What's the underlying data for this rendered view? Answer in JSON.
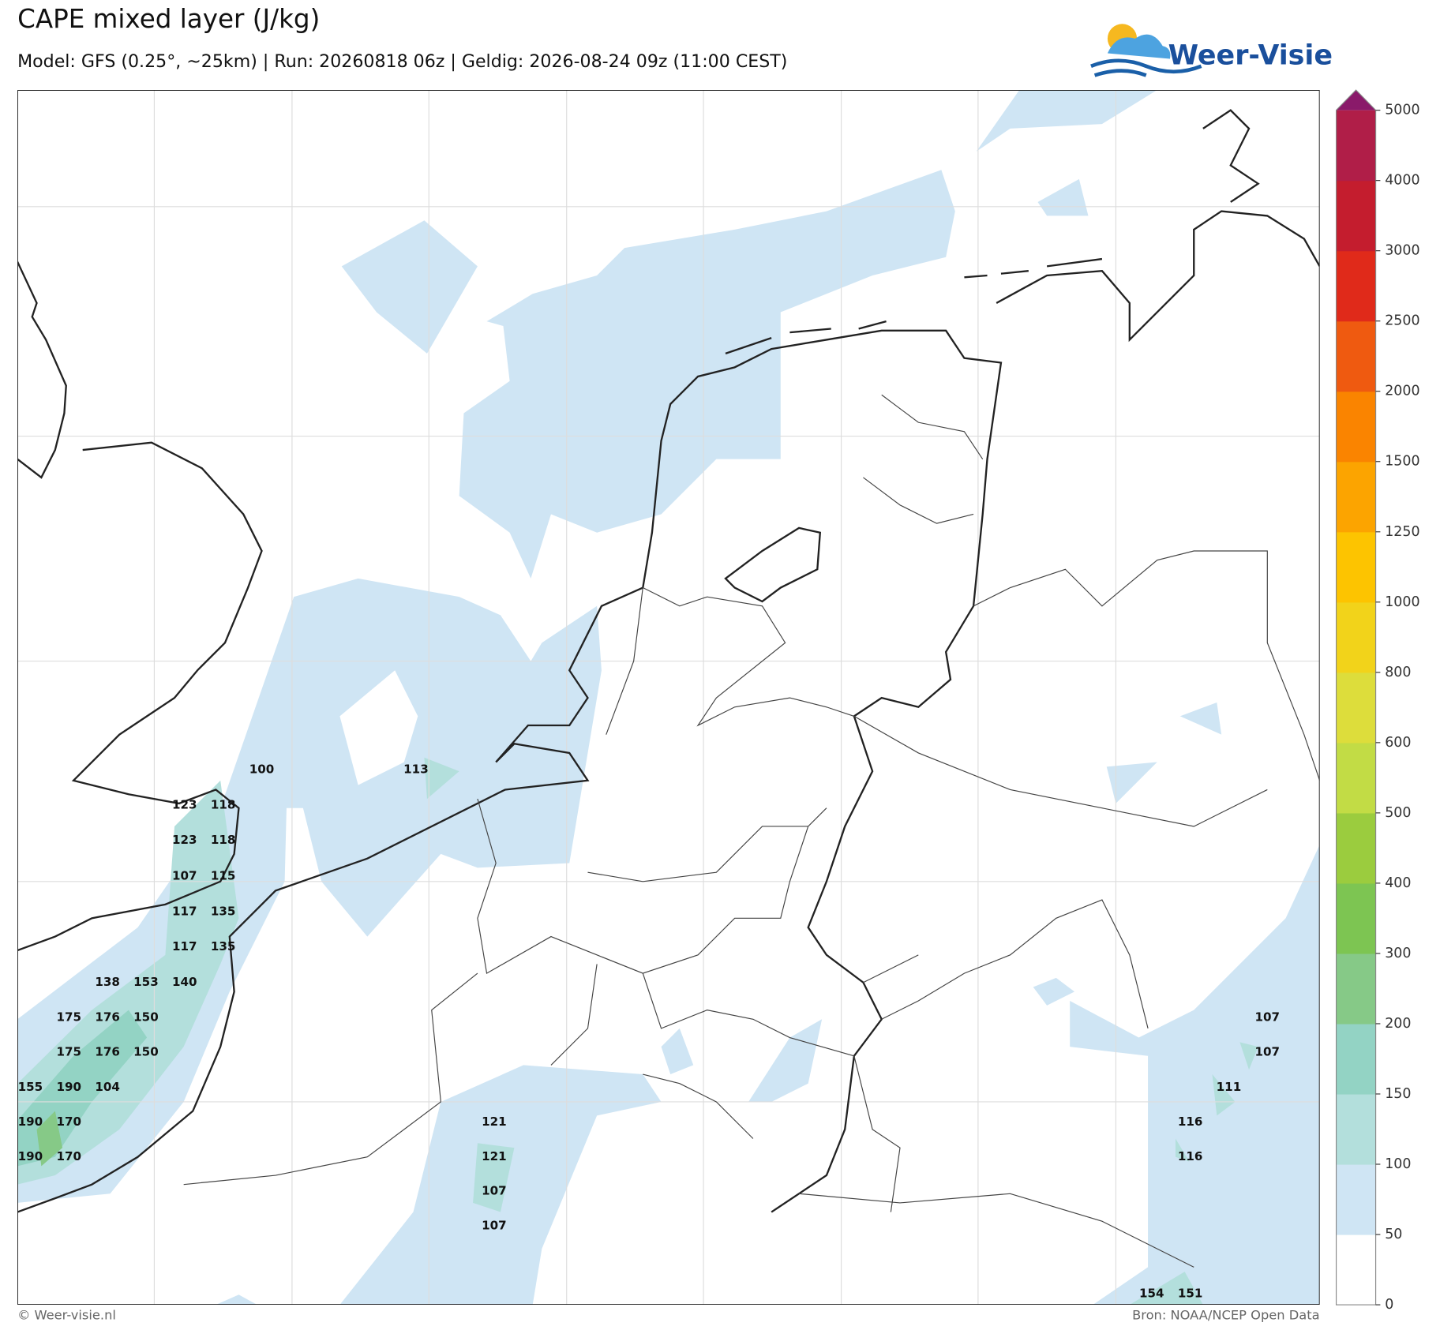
{
  "header": {
    "title": "CAPE mixed layer (J/kg)",
    "subtitle": "Model: GFS (0.25°, ~25km)  |  Run: 20260818 06z  |  Geldig: 2026-08-24 09z (11:00 CEST)",
    "logo": "Weer-Visie"
  },
  "map_labels": [
    100,
    113,
    123,
    118,
    123,
    118,
    107,
    115,
    117,
    135,
    117,
    135,
    138,
    153,
    140,
    175,
    176,
    150,
    175,
    176,
    150,
    155,
    190,
    104,
    190,
    170,
    190,
    170,
    121,
    121,
    107,
    107,
    107,
    107,
    111,
    116,
    116,
    154,
    151
  ],
  "colorbar": {
    "ticks": [
      0,
      50,
      100,
      150,
      200,
      300,
      400,
      500,
      600,
      800,
      1000,
      1250,
      1500,
      2000,
      2500,
      3000,
      4000,
      5000
    ],
    "colors": [
      "#ffffff",
      "#cfe5f4",
      "#b3dfdc",
      "#93d3c4",
      "#86c987",
      "#7dc552",
      "#9bcc3e",
      "#c2dc45",
      "#dddd3b",
      "#f2d31a",
      "#fdc400",
      "#fca400",
      "#fa8400",
      "#ef5a10",
      "#e02a1a",
      "#c41d2e",
      "#b01e48"
    ],
    "extend_color": "#8a1a6a"
  },
  "footer": {
    "left": "© Weer-visie.nl",
    "right": "Bron: NOAA/NCEP Open Data"
  }
}
